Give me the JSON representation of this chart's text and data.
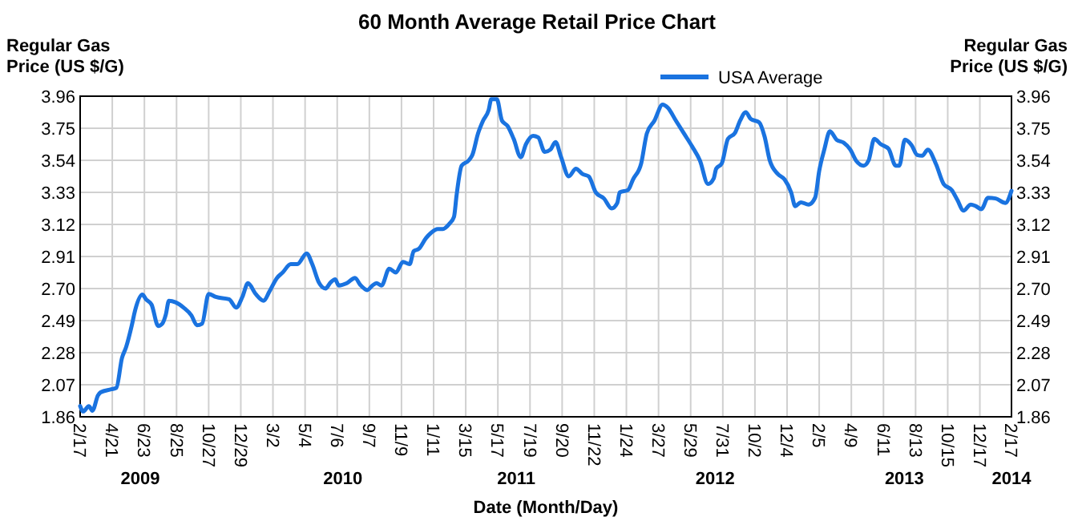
{
  "chart_data": {
    "type": "line",
    "title": "60 Month Average Retail Price Chart",
    "xlabel": "Date (Month/Day)",
    "ylabel": "Regular Gas Price (US $/G)",
    "y2label": "Regular Gas Price (US $/G)",
    "x": [
      "2009-02-17",
      "2009-02-23",
      "2009-03-06",
      "2009-03-13",
      "2009-03-24",
      "2009-03-29",
      "2009-04-19",
      "2009-04-29",
      "2009-05-10",
      "2009-05-18",
      "2009-05-29",
      "2009-06-05",
      "2009-06-19",
      "2009-06-26",
      "2009-07-07",
      "2009-07-20",
      "2009-07-28",
      "2009-08-04",
      "2009-08-10",
      "2009-08-23",
      "2009-09-08",
      "2009-09-23",
      "2009-10-04",
      "2009-10-14",
      "2009-10-27",
      "2009-11-10",
      "2009-12-06",
      "2009-12-20",
      "2010-01-01",
      "2010-01-12",
      "2010-01-27",
      "2010-02-12",
      "2010-02-23",
      "2010-03-10",
      "2010-03-21",
      "2010-04-06",
      "2010-04-19",
      "2010-05-07",
      "2010-05-18",
      "2010-05-31",
      "2010-06-13",
      "2010-06-23",
      "2010-07-02",
      "2010-07-09",
      "2010-07-25",
      "2010-08-10",
      "2010-08-20",
      "2010-09-03",
      "2010-09-13",
      "2010-09-21",
      "2010-10-01",
      "2010-10-16",
      "2010-10-29",
      "2010-11-12",
      "2010-11-25",
      "2010-12-03",
      "2010-12-13",
      "2010-12-27",
      "2011-01-06",
      "2011-01-19",
      "2011-01-29",
      "2011-02-11",
      "2011-02-20",
      "2011-02-25",
      "2011-03-07",
      "2011-03-21",
      "2011-03-28",
      "2011-04-08",
      "2011-04-18",
      "2011-04-29",
      "2011-05-04",
      "2011-05-15",
      "2011-05-25",
      "2011-06-05",
      "2011-06-17",
      "2011-07-01",
      "2011-07-11",
      "2011-07-25",
      "2011-08-04",
      "2011-08-17",
      "2011-08-28",
      "2011-09-07",
      "2011-09-18",
      "2011-10-03",
      "2011-10-17",
      "2011-10-30",
      "2011-11-11",
      "2011-11-25",
      "2011-12-11",
      "2011-12-26",
      "2012-01-06",
      "2012-01-11",
      "2012-01-27",
      "2012-02-06",
      "2012-02-22",
      "2012-03-04",
      "2012-03-19",
      "2012-04-04",
      "2012-04-14",
      "2012-04-30",
      "2012-05-16",
      "2012-06-01",
      "2012-06-16",
      "2012-07-02",
      "2012-07-13",
      "2012-07-18",
      "2012-07-29",
      "2012-08-10",
      "2012-08-24",
      "2012-09-03",
      "2012-09-14",
      "2012-09-24",
      "2012-10-10",
      "2012-10-21",
      "2012-10-31",
      "2012-11-16",
      "2012-11-29",
      "2012-12-12",
      "2012-12-20",
      "2012-12-31",
      "2013-01-15",
      "2013-01-28",
      "2013-02-05",
      "2013-02-15",
      "2013-02-26",
      "2013-03-11",
      "2013-03-25",
      "2013-04-07",
      "2013-04-19",
      "2013-05-03",
      "2013-05-13",
      "2013-05-24",
      "2013-06-06",
      "2013-06-21",
      "2013-07-05",
      "2013-07-12",
      "2013-07-23",
      "2013-08-05",
      "2013-08-16",
      "2013-08-26",
      "2013-09-06",
      "2013-09-22",
      "2013-10-07",
      "2013-10-23",
      "2013-11-03",
      "2013-11-15",
      "2013-11-29",
      "2013-12-09",
      "2013-12-20",
      "2014-01-02",
      "2014-01-17",
      "2014-02-05",
      "2014-02-17"
    ],
    "series": [
      {
        "name": "USA Average",
        "color": "#1a73e0",
        "values": [
          1.93,
          1.895,
          1.93,
          1.9,
          2.0,
          2.02,
          2.04,
          2.05,
          2.245,
          2.315,
          2.455,
          2.56,
          2.66,
          2.63,
          2.595,
          2.455,
          2.47,
          2.53,
          2.62,
          2.61,
          2.575,
          2.525,
          2.46,
          2.47,
          2.665,
          2.645,
          2.63,
          2.575,
          2.645,
          2.735,
          2.665,
          2.62,
          2.68,
          2.77,
          2.805,
          2.86,
          2.86,
          2.93,
          2.86,
          2.74,
          2.7,
          2.74,
          2.76,
          2.72,
          2.735,
          2.77,
          2.725,
          2.69,
          2.72,
          2.735,
          2.72,
          2.83,
          2.805,
          2.875,
          2.86,
          2.945,
          2.96,
          3.03,
          3.065,
          3.09,
          3.09,
          3.125,
          3.17,
          3.31,
          3.505,
          3.54,
          3.575,
          3.715,
          3.8,
          3.87,
          3.94,
          3.94,
          3.8,
          3.765,
          3.68,
          3.56,
          3.645,
          3.7,
          3.69,
          3.595,
          3.61,
          3.66,
          3.56,
          3.435,
          3.485,
          3.45,
          3.435,
          3.33,
          3.29,
          3.225,
          3.26,
          3.33,
          3.345,
          3.415,
          3.52,
          3.715,
          3.8,
          3.905,
          3.885,
          3.8,
          3.715,
          3.63,
          3.54,
          3.385,
          3.42,
          3.485,
          3.52,
          3.68,
          3.72,
          3.8,
          3.855,
          3.81,
          3.79,
          3.695,
          3.54,
          3.45,
          3.415,
          3.33,
          3.24,
          3.265,
          3.25,
          3.295,
          3.47,
          3.61,
          3.73,
          3.675,
          3.655,
          3.61,
          3.535,
          3.505,
          3.54,
          3.68,
          3.645,
          3.615,
          3.505,
          3.505,
          3.675,
          3.64,
          3.575,
          3.57,
          3.61,
          3.515,
          3.385,
          3.345,
          3.28,
          3.21,
          3.25,
          3.24,
          3.22,
          3.295,
          3.29,
          3.26,
          3.34
        ]
      }
    ],
    "xlim": [
      "2009-02-17",
      "2014-02-17"
    ],
    "xticks": [
      {
        "value": "2009-02-17",
        "label": "2/17"
      },
      {
        "value": "2009-04-21",
        "label": "4/21"
      },
      {
        "value": "2009-06-23",
        "label": "6/23"
      },
      {
        "value": "2009-08-25",
        "label": "8/25"
      },
      {
        "value": "2009-10-27",
        "label": "10/27"
      },
      {
        "value": "2009-12-29",
        "label": "12/29"
      },
      {
        "value": "2010-03-02",
        "label": "3/2"
      },
      {
        "value": "2010-05-04",
        "label": "5/4"
      },
      {
        "value": "2010-07-06",
        "label": "7/6"
      },
      {
        "value": "2010-09-07",
        "label": "9/7"
      },
      {
        "value": "2010-11-09",
        "label": "11/9"
      },
      {
        "value": "2011-01-11",
        "label": "1/11"
      },
      {
        "value": "2011-03-15",
        "label": "3/15"
      },
      {
        "value": "2011-05-17",
        "label": "5/17"
      },
      {
        "value": "2011-07-19",
        "label": "7/19"
      },
      {
        "value": "2011-09-20",
        "label": "9/20"
      },
      {
        "value": "2011-11-22",
        "label": "11/22"
      },
      {
        "value": "2012-01-24",
        "label": "1/24"
      },
      {
        "value": "2012-03-27",
        "label": "3/27"
      },
      {
        "value": "2012-05-29",
        "label": "5/29"
      },
      {
        "value": "2012-07-31",
        "label": "7/31"
      },
      {
        "value": "2012-10-02",
        "label": "10/2"
      },
      {
        "value": "2012-12-04",
        "label": "12/4"
      },
      {
        "value": "2013-02-05",
        "label": "2/5"
      },
      {
        "value": "2013-04-09",
        "label": "4/9"
      },
      {
        "value": "2013-06-11",
        "label": "6/11"
      },
      {
        "value": "2013-08-13",
        "label": "8/13"
      },
      {
        "value": "2013-10-15",
        "label": "10/15"
      },
      {
        "value": "2013-12-17",
        "label": "12/17"
      },
      {
        "value": "2014-02-17",
        "label": "2/17"
      }
    ],
    "x2lim": [
      "2009-02-17",
      "2014-02-17"
    ],
    "x2ticks": [
      {
        "value": "2009-06-15",
        "label": "2009"
      },
      {
        "value": "2010-07-17",
        "label": "2010"
      },
      {
        "value": "2011-06-22",
        "label": "2011"
      },
      {
        "value": "2012-07-16",
        "label": "2012"
      },
      {
        "value": "2013-07-22",
        "label": "2013"
      },
      {
        "value": "2014-02-17",
        "label": "2014"
      }
    ],
    "ylim": [
      1.86,
      3.96
    ],
    "yticks": [
      1.86,
      2.07,
      2.28,
      2.49,
      {
        "value": 2.7,
        "label": "2.70"
      },
      2.91,
      3.12,
      3.33,
      3.54,
      3.75,
      3.96
    ],
    "y2lim": [
      1.86,
      3.96
    ],
    "y2ticks": [
      1.86,
      2.07,
      2.28,
      2.49,
      {
        "value": 2.7,
        "label": "2.70"
      },
      2.91,
      3.12,
      3.33,
      3.54,
      3.75,
      3.96
    ],
    "grid": true,
    "legend": "top right",
    "marker": "none",
    "line_style": "solid"
  }
}
